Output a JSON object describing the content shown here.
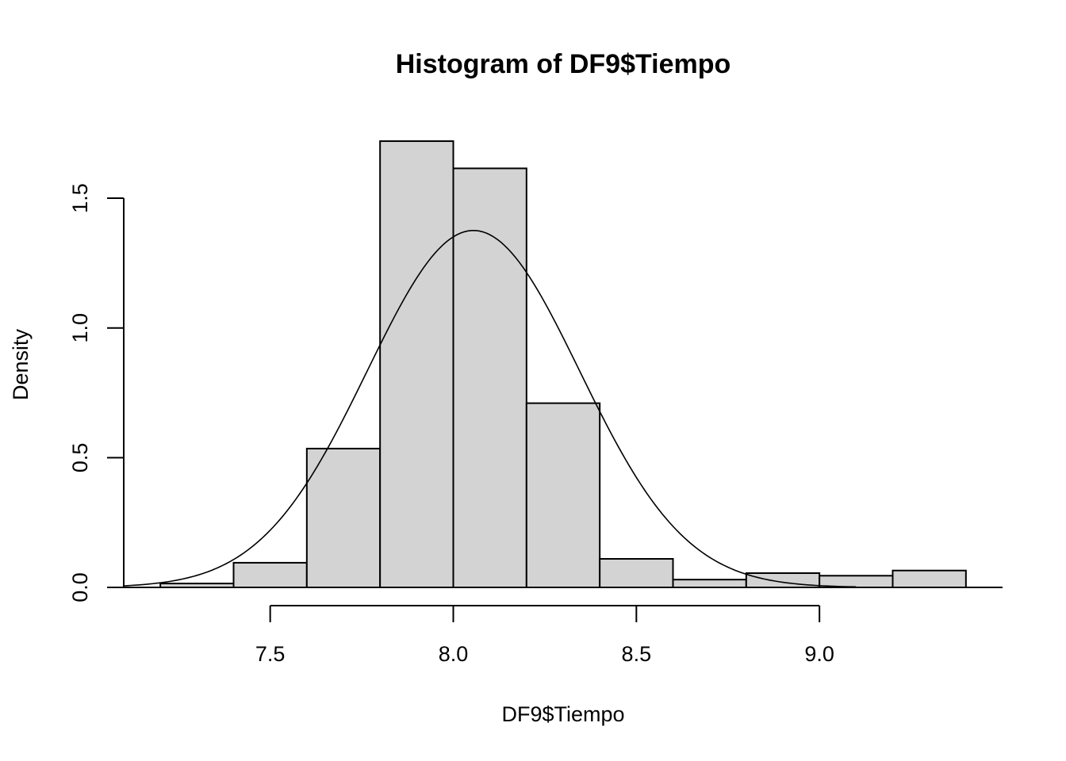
{
  "chart_data": {
    "type": "bar",
    "title": "Histogram of DF9$Tiempo",
    "xlabel": "DF9$Tiempo",
    "ylabel": "Density",
    "bins": [
      {
        "start": 7.2,
        "end": 7.4,
        "density": 0.015
      },
      {
        "start": 7.4,
        "end": 7.6,
        "density": 0.095
      },
      {
        "start": 7.6,
        "end": 7.8,
        "density": 0.535
      },
      {
        "start": 7.8,
        "end": 8.0,
        "density": 1.72
      },
      {
        "start": 8.0,
        "end": 8.2,
        "density": 1.615
      },
      {
        "start": 8.2,
        "end": 8.4,
        "density": 0.71
      },
      {
        "start": 8.4,
        "end": 8.6,
        "density": 0.11
      },
      {
        "start": 8.6,
        "end": 8.8,
        "density": 0.03
      },
      {
        "start": 8.8,
        "end": 9.0,
        "density": 0.055
      },
      {
        "start": 9.0,
        "end": 9.2,
        "density": 0.045
      },
      {
        "start": 9.2,
        "end": 9.4,
        "density": 0.065
      }
    ],
    "density_curve": {
      "type": "normal",
      "mean": 8.055,
      "sd": 0.29,
      "x_range": [
        7.1,
        9.1
      ]
    },
    "x_ticks": [
      7.5,
      8.0,
      8.5,
      9.0
    ],
    "x_tick_labels": [
      "7.5",
      "8.0",
      "8.5",
      "9.0"
    ],
    "y_ticks": [
      0.0,
      0.5,
      1.0,
      1.5
    ],
    "y_tick_labels": [
      "0.0",
      "0.5",
      "1.0",
      "1.5"
    ],
    "xlim": [
      7.1,
      9.5
    ],
    "ylim": [
      0,
      1.75
    ],
    "grid": false
  }
}
